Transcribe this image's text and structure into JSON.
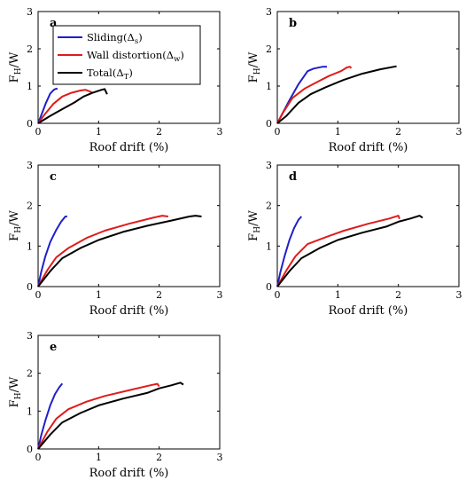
{
  "legend": {
    "entries": [
      {
        "label": "Sliding(Δ",
        "sub": "s",
        "tail": ")",
        "color": "#1f1fcc"
      },
      {
        "label": "Wall distortion(Δ",
        "sub": "w",
        "tail": ")",
        "color": "#e01b1b"
      },
      {
        "label": "Total(Δ",
        "sub": "T",
        "tail": ")",
        "color": "#000000"
      }
    ]
  },
  "axis_text": {
    "xlabel": "Roof drift (%)",
    "ylabel_main": "F",
    "ylabel_sub": "H",
    "ylabel_tail": "/W"
  },
  "chart_data": [
    {
      "panel": "a",
      "type": "line",
      "xlim": [
        0,
        3
      ],
      "ylim": [
        0,
        3
      ],
      "xticks": [
        0,
        1,
        2,
        3
      ],
      "yticks": [
        0,
        1,
        2,
        3
      ],
      "xlabel": "Roof drift (%)",
      "ylabel": "FH/W",
      "grid": false,
      "legend": "top-left",
      "series": [
        {
          "name": "Sliding(Δs)",
          "color": "#1f1fcc",
          "points": [
            [
              0,
              0
            ],
            [
              0.06,
              0.25
            ],
            [
              0.13,
              0.55
            ],
            [
              0.2,
              0.8
            ],
            [
              0.26,
              0.9
            ],
            [
              0.3,
              0.93
            ],
            [
              0.32,
              0.92
            ]
          ]
        },
        {
          "name": "Wall distortion(Δw)",
          "color": "#e01b1b",
          "points": [
            [
              0,
              0
            ],
            [
              0.1,
              0.22
            ],
            [
              0.25,
              0.52
            ],
            [
              0.4,
              0.72
            ],
            [
              0.55,
              0.82
            ],
            [
              0.7,
              0.88
            ],
            [
              0.78,
              0.9
            ],
            [
              0.85,
              0.86
            ],
            [
              0.9,
              0.82
            ]
          ]
        },
        {
          "name": "Total(Δ T)",
          "color": "#000000",
          "points": [
            [
              0,
              0
            ],
            [
              0.2,
              0.2
            ],
            [
              0.4,
              0.38
            ],
            [
              0.6,
              0.56
            ],
            [
              0.75,
              0.72
            ],
            [
              0.9,
              0.82
            ],
            [
              1.05,
              0.9
            ],
            [
              1.1,
              0.92
            ],
            [
              1.14,
              0.78
            ]
          ]
        }
      ]
    },
    {
      "panel": "b",
      "type": "line",
      "xlim": [
        0,
        3
      ],
      "ylim": [
        0,
        3
      ],
      "xticks": [
        0,
        1,
        2,
        3
      ],
      "yticks": [
        0,
        1,
        2,
        3
      ],
      "xlabel": "Roof drift (%)",
      "ylabel": "FH/W",
      "grid": false,
      "series": [
        {
          "name": "Sliding(Δs)",
          "color": "#1f1fcc",
          "points": [
            [
              0,
              0
            ],
            [
              0.08,
              0.25
            ],
            [
              0.2,
              0.62
            ],
            [
              0.35,
              1.05
            ],
            [
              0.5,
              1.4
            ],
            [
              0.6,
              1.47
            ],
            [
              0.75,
              1.52
            ],
            [
              0.82,
              1.52
            ]
          ]
        },
        {
          "name": "Wall distortion(Δw)",
          "color": "#e01b1b",
          "points": [
            [
              0,
              0
            ],
            [
              0.1,
              0.3
            ],
            [
              0.25,
              0.68
            ],
            [
              0.45,
              0.93
            ],
            [
              0.65,
              1.1
            ],
            [
              0.85,
              1.27
            ],
            [
              1.05,
              1.4
            ],
            [
              1.15,
              1.5
            ],
            [
              1.2,
              1.52
            ],
            [
              1.22,
              1.48
            ]
          ]
        },
        {
          "name": "Total(Δ T)",
          "color": "#000000",
          "points": [
            [
              0,
              0
            ],
            [
              0.15,
              0.2
            ],
            [
              0.35,
              0.55
            ],
            [
              0.55,
              0.78
            ],
            [
              0.8,
              0.97
            ],
            [
              1.1,
              1.17
            ],
            [
              1.4,
              1.33
            ],
            [
              1.7,
              1.45
            ],
            [
              1.97,
              1.53
            ]
          ]
        }
      ]
    },
    {
      "panel": "c",
      "type": "line",
      "xlim": [
        0,
        3
      ],
      "ylim": [
        0,
        3
      ],
      "xticks": [
        0,
        1,
        2,
        3
      ],
      "yticks": [
        0,
        1,
        2,
        3
      ],
      "xlabel": "Roof drift (%)",
      "ylabel": "FH/W",
      "grid": false,
      "series": [
        {
          "name": "Sliding(Δs)",
          "color": "#1f1fcc",
          "points": [
            [
              0,
              0
            ],
            [
              0.05,
              0.35
            ],
            [
              0.12,
              0.75
            ],
            [
              0.2,
              1.1
            ],
            [
              0.3,
              1.4
            ],
            [
              0.38,
              1.6
            ],
            [
              0.45,
              1.73
            ],
            [
              0.48,
              1.73
            ]
          ]
        },
        {
          "name": "Wall distortion(Δw)",
          "color": "#e01b1b",
          "points": [
            [
              0,
              0
            ],
            [
              0.15,
              0.4
            ],
            [
              0.3,
              0.72
            ],
            [
              0.5,
              0.95
            ],
            [
              0.8,
              1.2
            ],
            [
              1.1,
              1.38
            ],
            [
              1.5,
              1.55
            ],
            [
              1.9,
              1.7
            ],
            [
              2.05,
              1.75
            ],
            [
              2.15,
              1.73
            ]
          ]
        },
        {
          "name": "Total(Δ T)",
          "color": "#000000",
          "points": [
            [
              0,
              0
            ],
            [
              0.2,
              0.38
            ],
            [
              0.4,
              0.7
            ],
            [
              0.7,
              0.95
            ],
            [
              1.0,
              1.15
            ],
            [
              1.4,
              1.35
            ],
            [
              1.8,
              1.5
            ],
            [
              2.2,
              1.63
            ],
            [
              2.5,
              1.73
            ],
            [
              2.6,
              1.75
            ],
            [
              2.7,
              1.73
            ]
          ]
        }
      ]
    },
    {
      "panel": "d",
      "type": "line",
      "xlim": [
        0,
        3
      ],
      "ylim": [
        0,
        3
      ],
      "xticks": [
        0,
        1,
        2,
        3
      ],
      "yticks": [
        0,
        1,
        2,
        3
      ],
      "xlabel": "Roof drift (%)",
      "ylabel": "FH/W",
      "grid": false,
      "series": [
        {
          "name": "Sliding(Δs)",
          "color": "#1f1fcc",
          "points": [
            [
              0,
              0
            ],
            [
              0.05,
              0.35
            ],
            [
              0.12,
              0.75
            ],
            [
              0.2,
              1.15
            ],
            [
              0.28,
              1.45
            ],
            [
              0.35,
              1.65
            ],
            [
              0.4,
              1.73
            ]
          ]
        },
        {
          "name": "Wall distortion(Δw)",
          "color": "#e01b1b",
          "points": [
            [
              0,
              0
            ],
            [
              0.15,
              0.4
            ],
            [
              0.3,
              0.75
            ],
            [
              0.5,
              1.05
            ],
            [
              0.8,
              1.22
            ],
            [
              1.1,
              1.38
            ],
            [
              1.5,
              1.55
            ],
            [
              1.85,
              1.68
            ],
            [
              2.0,
              1.75
            ],
            [
              2.02,
              1.67
            ]
          ]
        },
        {
          "name": "Total(Δ T)",
          "color": "#000000",
          "points": [
            [
              0,
              0
            ],
            [
              0.2,
              0.38
            ],
            [
              0.4,
              0.7
            ],
            [
              0.7,
              0.95
            ],
            [
              1.0,
              1.15
            ],
            [
              1.4,
              1.33
            ],
            [
              1.8,
              1.48
            ],
            [
              2.0,
              1.6
            ],
            [
              2.2,
              1.68
            ],
            [
              2.35,
              1.75
            ],
            [
              2.4,
              1.7
            ]
          ]
        }
      ]
    },
    {
      "panel": "e",
      "type": "line",
      "xlim": [
        0,
        3
      ],
      "ylim": [
        0,
        3
      ],
      "xticks": [
        0,
        1,
        2,
        3
      ],
      "yticks": [
        0,
        1,
        2,
        3
      ],
      "xlabel": "Roof drift (%)",
      "ylabel": "FH/W",
      "grid": false,
      "series": [
        {
          "name": "Sliding(Δs)",
          "color": "#1f1fcc",
          "points": [
            [
              0,
              0
            ],
            [
              0.05,
              0.35
            ],
            [
              0.12,
              0.75
            ],
            [
              0.2,
              1.15
            ],
            [
              0.28,
              1.45
            ],
            [
              0.35,
              1.63
            ],
            [
              0.4,
              1.73
            ]
          ]
        },
        {
          "name": "Wall distortion(Δw)",
          "color": "#e01b1b",
          "points": [
            [
              0,
              0
            ],
            [
              0.15,
              0.45
            ],
            [
              0.3,
              0.8
            ],
            [
              0.5,
              1.05
            ],
            [
              0.8,
              1.25
            ],
            [
              1.1,
              1.4
            ],
            [
              1.5,
              1.55
            ],
            [
              1.85,
              1.68
            ],
            [
              1.97,
              1.72
            ],
            [
              2.0,
              1.65
            ]
          ]
        },
        {
          "name": "Total(Δ T)",
          "color": "#000000",
          "points": [
            [
              0,
              0
            ],
            [
              0.2,
              0.38
            ],
            [
              0.4,
              0.7
            ],
            [
              0.7,
              0.95
            ],
            [
              1.0,
              1.15
            ],
            [
              1.4,
              1.33
            ],
            [
              1.8,
              1.48
            ],
            [
              2.0,
              1.6
            ],
            [
              2.2,
              1.68
            ],
            [
              2.35,
              1.75
            ],
            [
              2.4,
              1.7
            ]
          ]
        }
      ]
    }
  ]
}
